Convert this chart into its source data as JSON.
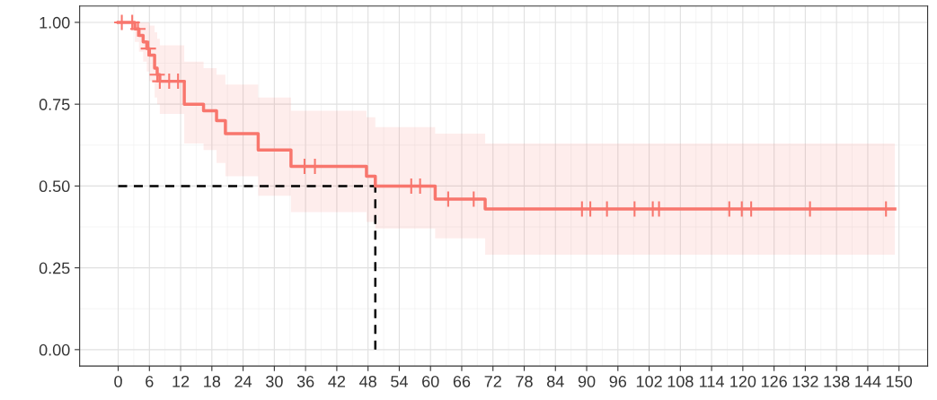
{
  "chart_data": {
    "type": "step",
    "x": [
      0,
      3.2,
      4,
      4.8,
      5.5,
      6,
      7,
      7.5,
      8,
      12.7,
      16.4,
      18.9,
      20.6,
      26.9,
      33.2,
      47.7,
      49.4,
      60.9,
      70.5,
      149.2
    ],
    "series": [
      {
        "color": "#f8766d",
        "values": [
          1,
          0.98,
          0.96,
          0.94,
          0.92,
          0.9,
          0.86,
          0.84,
          0.82,
          0.75,
          0.73,
          0.7,
          0.66,
          0.61,
          0.56,
          0.53,
          0.5,
          0.46,
          0.43,
          0.43
        ],
        "upper": [
          1,
          1,
          1,
          1,
          1,
          0.99,
          0.97,
          0.95,
          0.93,
          0.88,
          0.86,
          0.84,
          0.81,
          0.77,
          0.73,
          0.71,
          0.68,
          0.66,
          0.63,
          0.63
        ],
        "lower": [
          1,
          0.94,
          0.91,
          0.88,
          0.85,
          0.82,
          0.77,
          0.75,
          0.72,
          0.63,
          0.61,
          0.57,
          0.53,
          0.47,
          0.42,
          0.39,
          0.37,
          0.34,
          0.29,
          0.29
        ]
      },
      {
        "type": "scatter",
        "marker": "cross",
        "color": "#f8766d",
        "x": [
          0.7,
          2.7,
          3.8,
          5.8,
          7.5,
          8.0,
          9.8,
          11.5,
          35.8,
          37.8,
          56.3,
          58.0,
          63.4,
          68.3,
          89.1,
          90.7,
          93.9,
          99.2,
          102.7,
          103.9,
          117.4,
          119.8,
          121.6,
          132.9,
          147.5
        ],
        "values": [
          1,
          1,
          0.98,
          0.92,
          0.84,
          0.82,
          0.82,
          0.82,
          0.56,
          0.56,
          0.5,
          0.5,
          0.46,
          0.46,
          0.43,
          0.43,
          0.43,
          0.43,
          0.43,
          0.43,
          0.43,
          0.43,
          0.43,
          0.43,
          0.43
        ]
      }
    ],
    "ref_lines": [
      {
        "axis": "y",
        "value": 0.5,
        "color": "#000000",
        "line_style": "dashed"
      },
      {
        "axis": "x",
        "value": 49.4,
        "color": "#000000",
        "line_style": "dashed"
      }
    ],
    "xlim": [
      -7.4,
      155.5
    ],
    "xticks": [
      0,
      6,
      12,
      18,
      24,
      30,
      36,
      42,
      48,
      54,
      60,
      66,
      72,
      78,
      84,
      90,
      96,
      102,
      108,
      114,
      120,
      126,
      132,
      138,
      144,
      150
    ],
    "ylim": [
      -0.05,
      1.05
    ],
    "yticks": [
      {
        "value": 0,
        "label": "0.00"
      },
      {
        "value": 0.25,
        "label": "0.25"
      },
      {
        "value": 0.5,
        "label": "0.50"
      },
      {
        "value": 0.75,
        "label": "0.75"
      },
      {
        "value": 1,
        "label": "1.00"
      }
    ],
    "grid": true
  }
}
